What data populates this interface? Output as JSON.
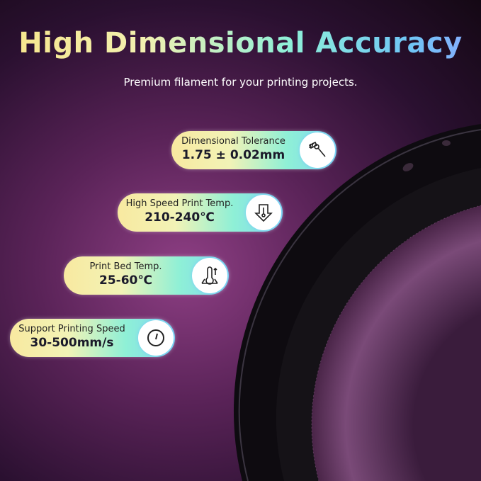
{
  "title": "High Dimensional Accuracy",
  "subtitle": "Premium filament for your printing projects.",
  "specs": [
    {
      "label": "Dimensional Tolerance",
      "value": "1.75 ± 0.02mm",
      "icon": "caliper-icon"
    },
    {
      "label": "High Speed Print Temp.",
      "value": "210-240℃",
      "icon": "nozzle-temperature-icon"
    },
    {
      "label": "Print Bed Temp.",
      "value": "25-60℃",
      "icon": "bed-temperature-icon"
    },
    {
      "label": "Support Printing Speed",
      "value": "30-500mm/s",
      "icon": "speedometer-icon"
    }
  ],
  "colors": {
    "background": "#5a2358",
    "filament": "#6b3a6a",
    "spool": "#111111"
  }
}
